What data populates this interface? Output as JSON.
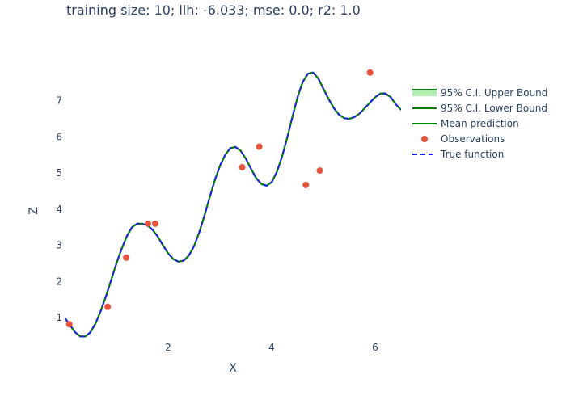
{
  "chart_data": {
    "type": "line",
    "title": "training size: 10; llh: -6.033; mse: 0.0; r2: 1.0",
    "xlabel": "X",
    "ylabel": "Z",
    "xlim": [
      0.0,
      6.5
    ],
    "ylim": [
      0.4,
      8.0
    ],
    "x_ticks": [
      2,
      4,
      6
    ],
    "y_ticks": [
      1,
      2,
      3,
      4,
      5,
      6,
      7
    ],
    "grid": false,
    "legend_position": "top-right",
    "x": [
      0.0,
      0.1,
      0.2,
      0.3,
      0.4,
      0.5,
      0.6,
      0.7,
      0.8,
      0.9,
      1.0,
      1.1,
      1.2,
      1.3,
      1.4,
      1.5,
      1.6,
      1.7,
      1.8,
      1.9,
      2.0,
      2.1,
      2.2,
      2.3,
      2.4,
      2.5,
      2.6,
      2.7,
      2.8,
      2.9,
      3.0,
      3.1,
      3.2,
      3.3,
      3.4,
      3.5,
      3.6,
      3.7,
      3.8,
      3.9,
      4.0,
      4.1,
      4.2,
      4.3,
      4.4,
      4.5,
      4.6,
      4.7,
      4.8,
      4.9,
      5.0,
      5.1,
      5.2,
      5.3,
      5.4,
      5.5,
      5.6,
      5.7,
      5.8,
      5.9,
      6.0,
      6.1,
      6.2,
      6.3,
      6.4,
      6.5
    ],
    "series": [
      {
        "name": "95% C.I. Upper Bound",
        "color": "#008000",
        "fill": "rgba(0,200,0,0.3)",
        "values": [
          1.0,
          0.8,
          0.6,
          0.48,
          0.48,
          0.6,
          0.85,
          1.2,
          1.6,
          2.05,
          2.5,
          2.9,
          3.25,
          3.5,
          3.6,
          3.6,
          3.55,
          3.43,
          3.24,
          3.0,
          2.78,
          2.62,
          2.55,
          2.58,
          2.72,
          2.98,
          3.36,
          3.82,
          4.32,
          4.8,
          5.2,
          5.5,
          5.69,
          5.72,
          5.62,
          5.4,
          5.12,
          4.86,
          4.7,
          4.65,
          4.75,
          5.03,
          5.45,
          5.98,
          6.55,
          7.1,
          7.52,
          7.75,
          7.78,
          7.62,
          7.33,
          7.05,
          6.8,
          6.62,
          6.52,
          6.5,
          6.55,
          6.65,
          6.8,
          6.95,
          7.1,
          7.2,
          7.2,
          7.1,
          6.9,
          6.75
        ]
      },
      {
        "name": "95% C.I. Lower Bound",
        "color": "#008000",
        "values": [
          1.0,
          0.8,
          0.6,
          0.48,
          0.48,
          0.6,
          0.85,
          1.2,
          1.6,
          2.05,
          2.5,
          2.9,
          3.25,
          3.5,
          3.6,
          3.6,
          3.55,
          3.43,
          3.24,
          3.0,
          2.78,
          2.62,
          2.55,
          2.58,
          2.72,
          2.98,
          3.36,
          3.82,
          4.32,
          4.8,
          5.2,
          5.5,
          5.69,
          5.72,
          5.62,
          5.4,
          5.12,
          4.86,
          4.7,
          4.65,
          4.75,
          5.03,
          5.45,
          5.98,
          6.55,
          7.1,
          7.52,
          7.75,
          7.78,
          7.62,
          7.33,
          7.05,
          6.8,
          6.62,
          6.52,
          6.5,
          6.55,
          6.65,
          6.8,
          6.95,
          7.1,
          7.2,
          7.2,
          7.1,
          6.9,
          6.75
        ]
      },
      {
        "name": "Mean prediction",
        "color": "#008000",
        "values": [
          1.0,
          0.8,
          0.6,
          0.48,
          0.48,
          0.6,
          0.85,
          1.2,
          1.6,
          2.05,
          2.5,
          2.9,
          3.25,
          3.5,
          3.6,
          3.6,
          3.55,
          3.43,
          3.24,
          3.0,
          2.78,
          2.62,
          2.55,
          2.58,
          2.72,
          2.98,
          3.36,
          3.82,
          4.32,
          4.8,
          5.2,
          5.5,
          5.69,
          5.72,
          5.62,
          5.4,
          5.12,
          4.86,
          4.7,
          4.65,
          4.75,
          5.03,
          5.45,
          5.98,
          6.55,
          7.1,
          7.52,
          7.75,
          7.78,
          7.62,
          7.33,
          7.05,
          6.8,
          6.62,
          6.52,
          6.5,
          6.55,
          6.65,
          6.8,
          6.95,
          7.1,
          7.2,
          7.2,
          7.1,
          6.9,
          6.75
        ]
      },
      {
        "name": "True function",
        "color": "#1f1fe0",
        "dash": "dash",
        "values": [
          1.0,
          0.8,
          0.6,
          0.48,
          0.48,
          0.6,
          0.85,
          1.2,
          1.6,
          2.05,
          2.5,
          2.9,
          3.25,
          3.5,
          3.6,
          3.6,
          3.55,
          3.43,
          3.24,
          3.0,
          2.78,
          2.62,
          2.55,
          2.58,
          2.72,
          2.98,
          3.36,
          3.82,
          4.32,
          4.8,
          5.2,
          5.5,
          5.69,
          5.72,
          5.62,
          5.4,
          5.12,
          4.86,
          4.7,
          4.65,
          4.75,
          5.03,
          5.45,
          5.98,
          6.55,
          7.1,
          7.52,
          7.75,
          7.78,
          7.62,
          7.33,
          7.05,
          6.8,
          6.62,
          6.52,
          6.5,
          6.55,
          6.65,
          6.8,
          6.95,
          7.1,
          7.2,
          7.2,
          7.1,
          6.9,
          6.75
        ]
      }
    ],
    "observations": {
      "name": "Observations",
      "color": "#e5533c",
      "points": [
        {
          "x": 0.09,
          "y": 0.82
        },
        {
          "x": 0.83,
          "y": 1.3
        },
        {
          "x": 1.19,
          "y": 2.66
        },
        {
          "x": 1.61,
          "y": 3.6
        },
        {
          "x": 1.75,
          "y": 3.6
        },
        {
          "x": 3.43,
          "y": 5.16
        },
        {
          "x": 3.76,
          "y": 5.73
        },
        {
          "x": 4.66,
          "y": 4.67
        },
        {
          "x": 4.93,
          "y": 5.07
        },
        {
          "x": 5.9,
          "y": 7.78
        }
      ]
    }
  }
}
